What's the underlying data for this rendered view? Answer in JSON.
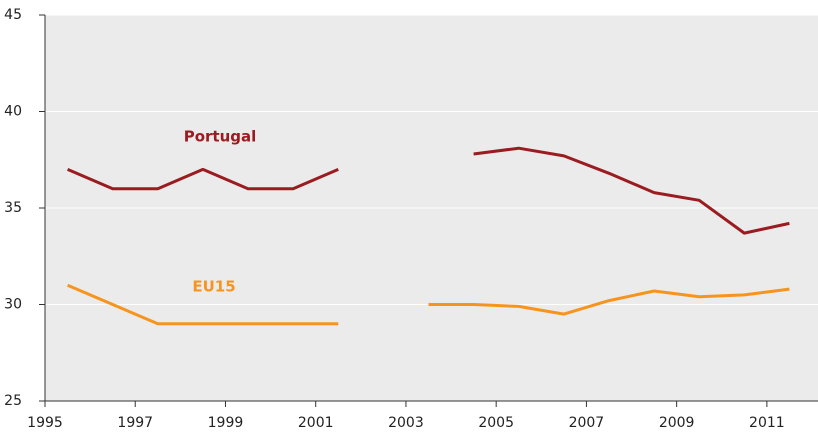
{
  "chart_data": {
    "type": "line",
    "categories": [
      "1995",
      null,
      "1997",
      null,
      "1999",
      null,
      "2001",
      null,
      "2003",
      null,
      "2005",
      null,
      "2007",
      null,
      "2009",
      null,
      "2011"
    ],
    "series": [
      {
        "name": "Portugal",
        "color": "#9b1c20",
        "values": [
          37,
          36,
          36,
          37,
          36,
          36,
          37,
          null,
          null,
          37.8,
          38.1,
          37.7,
          36.8,
          35.8,
          35.4,
          33.7,
          34.2
        ]
      },
      {
        "name": "EU15",
        "color": "#f7941d",
        "values": [
          31,
          30,
          29,
          29,
          29,
          29,
          29,
          null,
          30,
          30,
          29.9,
          29.5,
          30.2,
          30.7,
          30.4,
          30.5,
          30.8
        ]
      }
    ],
    "ylim": [
      25,
      45
    ],
    "yticks": [
      25,
      30,
      35,
      40,
      45
    ],
    "grid": true
  }
}
